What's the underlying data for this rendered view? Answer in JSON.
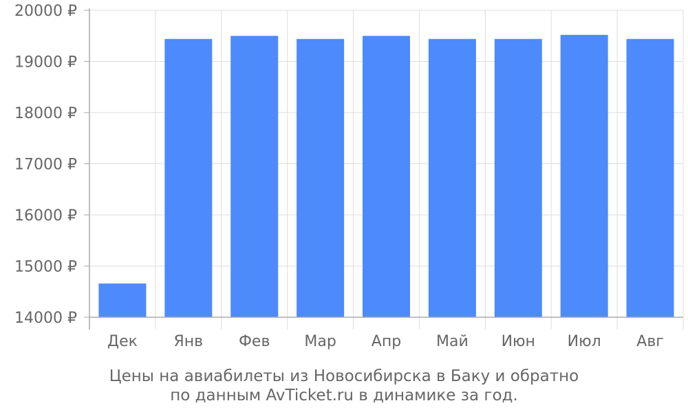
{
  "chart_data": {
    "type": "bar",
    "categories": [
      "Дек",
      "Янв",
      "Фев",
      "Мар",
      "Апр",
      "Май",
      "Июн",
      "Июл",
      "Авг"
    ],
    "values": [
      14660,
      19440,
      19500,
      19440,
      19500,
      19440,
      19440,
      19520,
      19440
    ],
    "ylim": [
      14000,
      20000
    ],
    "y_ticks": [
      14000,
      15000,
      16000,
      17000,
      18000,
      19000,
      20000
    ],
    "y_tick_labels": [
      "14000 ₽",
      "15000 ₽",
      "16000 ₽",
      "17000 ₽",
      "18000 ₽",
      "19000 ₽",
      "20000 ₽"
    ],
    "grid": true,
    "legend": "none",
    "colors": {
      "bar": "#4d8afc",
      "grid": "#dddddd",
      "axis": "#aaaaaa",
      "text": "#666666"
    }
  },
  "caption": {
    "line1": "Цены на авиабилеты из Новосибирска в Баку и обратно",
    "line2": "по данным AvTicket.ru в динамике за год."
  }
}
